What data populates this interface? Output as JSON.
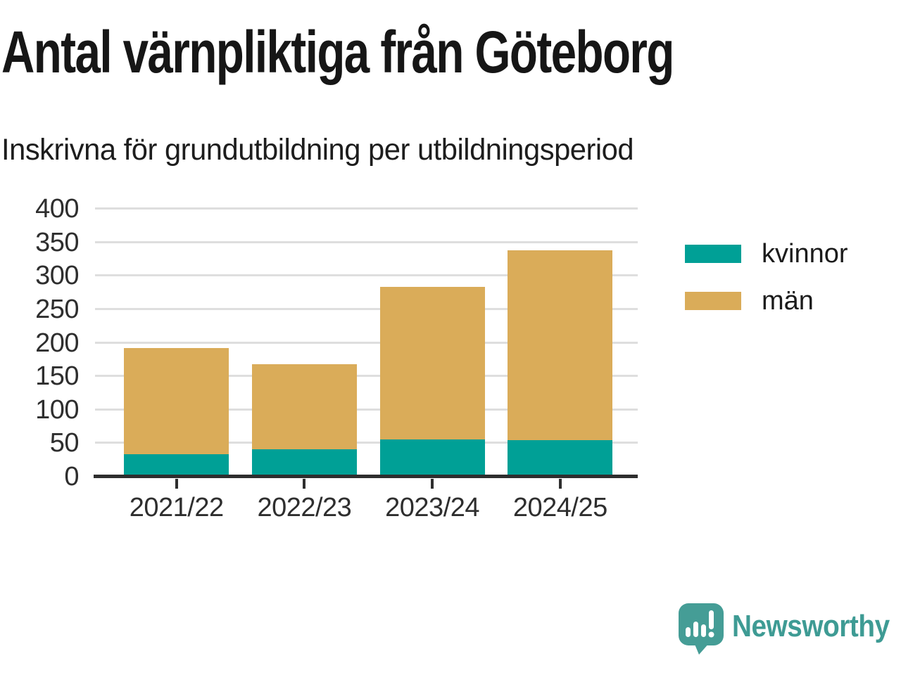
{
  "chart_data": {
    "type": "bar",
    "stacked": true,
    "title": "Antal värnpliktiga från Göteborg",
    "subtitle": "Inskrivna för grundutbildning per utbildningsperiod",
    "categories": [
      "2021/22",
      "2022/23",
      "2023/24",
      "2024/25"
    ],
    "series": [
      {
        "name": "kvinnor",
        "color": "#00A096",
        "values": [
          34,
          41,
          56,
          55
        ]
      },
      {
        "name": "män",
        "color": "#DAAC59",
        "values": [
          158,
          127,
          227,
          283
        ]
      }
    ],
    "stacked_totals": [
      192,
      168,
      283,
      338
    ],
    "xlabel": "",
    "ylabel": "",
    "ylim": [
      0,
      400
    ],
    "ytick_step": 50,
    "grid": true,
    "legend_position": "right"
  },
  "footer": {
    "brand": "Newsworthy",
    "logo_icon": "newsworthy-speech-bubble-barchart-icon",
    "brand_color": "#3E9B94"
  },
  "style_colors": {
    "bar_teal": "#00A096",
    "bar_gold": "#DAAC59",
    "axis": "#2E2E2E",
    "gridline": "#DEDEDE",
    "title_text": "#161616",
    "tick_text": "#2E2E2E"
  }
}
